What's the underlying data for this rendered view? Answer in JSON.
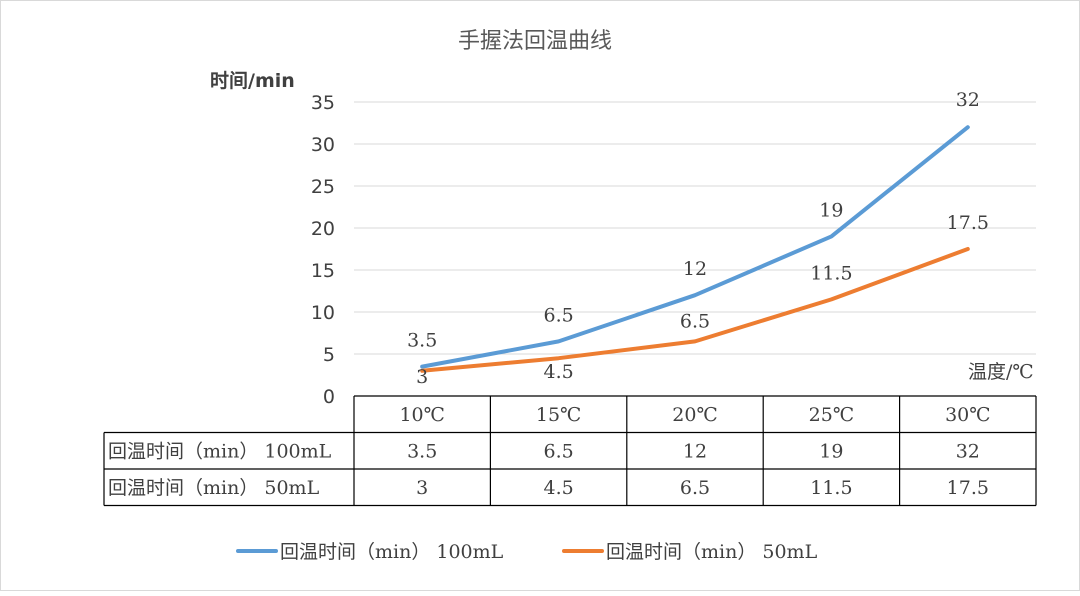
{
  "chart_data": {
    "type": "line",
    "title": "手握法回温曲线",
    "ylabel": "时间/min",
    "xlabel": "温度/℃",
    "categories": [
      "10℃",
      "15℃",
      "20℃",
      "25℃",
      "30℃"
    ],
    "ylim": [
      0,
      35
    ],
    "yticks": [
      "0",
      "5",
      "10",
      "15",
      "20",
      "25",
      "30",
      "35"
    ],
    "grid": true,
    "legend_position": "bottom",
    "series": [
      {
        "name": "回温时间（min） 100mL",
        "values": [
          3.5,
          6.5,
          12,
          19,
          32
        ],
        "value_labels": [
          "3.5",
          "6.5",
          "12",
          "19",
          "32"
        ],
        "color": "#5b9bd5"
      },
      {
        "name": "回温时间（min） 50mL",
        "values": [
          3,
          4.5,
          6.5,
          11.5,
          17.5
        ],
        "value_labels": [
          "3",
          "4.5",
          "6.5",
          "11.5",
          "17.5"
        ],
        "color": "#ed7d31"
      }
    ]
  }
}
